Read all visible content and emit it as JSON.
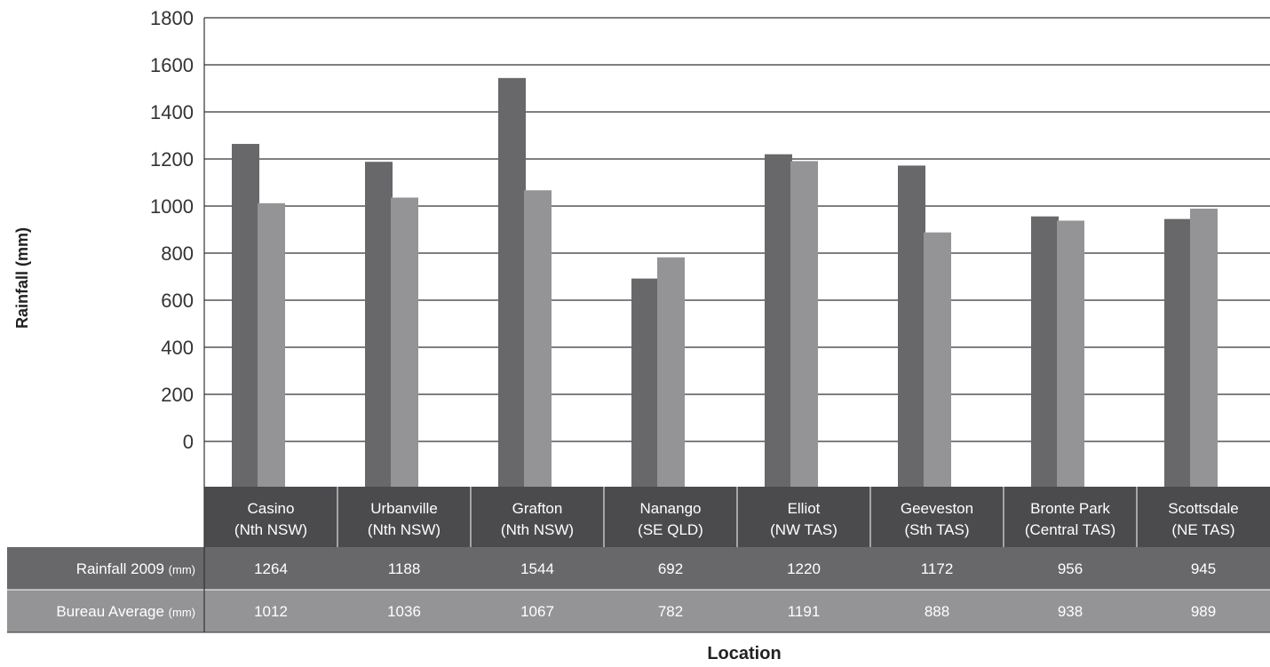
{
  "chart_data": {
    "type": "bar",
    "categories": [
      {
        "name": "Casino",
        "region": "(Nth NSW)"
      },
      {
        "name": "Urbanville",
        "region": "(Nth NSW)"
      },
      {
        "name": "Grafton",
        "region": "(Nth NSW)"
      },
      {
        "name": "Nanango",
        "region": "(SE QLD)"
      },
      {
        "name": "Elliot",
        "region": "(NW TAS)"
      },
      {
        "name": "Geeveston",
        "region": "(Sth TAS)"
      },
      {
        "name": "Bronte Park",
        "region": "(Central TAS)"
      },
      {
        "name": "Scottsdale",
        "region": "(NE TAS)"
      }
    ],
    "series": [
      {
        "name": "Rainfall 2009",
        "unit": "(mm)",
        "color": "#68686b",
        "values": [
          1264,
          1188,
          1544,
          692,
          1220,
          1172,
          956,
          945
        ]
      },
      {
        "name": "Bureau Average",
        "unit": "(mm)",
        "color": "#949497",
        "values": [
          1012,
          1036,
          1067,
          782,
          1191,
          888,
          938,
          989
        ]
      }
    ],
    "ylabel": "Rainfall (mm)",
    "xlabel": "Location",
    "ylim": [
      0,
      1800
    ],
    "yticks": [
      0,
      200,
      400,
      600,
      800,
      1000,
      1200,
      1400,
      1600,
      1800
    ],
    "grid": true,
    "legend": "data table below chart",
    "table_header_color": "#4b4b4e",
    "table_row_colors": [
      "#68686b",
      "#949497"
    ]
  }
}
